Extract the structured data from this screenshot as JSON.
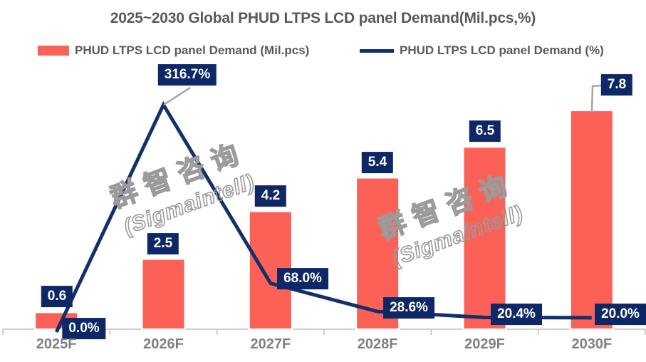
{
  "title": "2025~2030 Global PHUD LTPS LCD panel Demand(Mil.pcs,%)",
  "legend": {
    "bar_label": "PHUD LTPS LCD panel Demand (Mil.pcs)",
    "line_label": "PHUD LTPS LCD panel Demand (%)"
  },
  "watermark": {
    "line1": "群智咨询",
    "line2": "(Sigmaintell)"
  },
  "colors": {
    "bar": "#FB6157",
    "bar_stroke": "#FFFFFF",
    "line": "#13306B",
    "label_box": "#0E2766",
    "label_text": "#FFFFFF",
    "axis": "#BFBFBF",
    "heading_text": "#595959",
    "leader": "#A6A6A6",
    "watermark": "#9B9B9B"
  },
  "chart_data": {
    "type": "combo",
    "title": "2025~2030 Global PHUD LTPS LCD panel Demand(Mil.pcs,%)",
    "categories": [
      "2025F",
      "2026F",
      "2027F",
      "2028F",
      "2029F",
      "2030F"
    ],
    "series": [
      {
        "name": "PHUD LTPS LCD panel Demand (Mil.pcs)",
        "type": "bar",
        "values": [
          0.6,
          2.5,
          4.2,
          5.4,
          6.5,
          7.8
        ],
        "labels": [
          "0.6",
          "2.5",
          "4.2",
          "5.4",
          "6.5",
          "7.8"
        ]
      },
      {
        "name": "PHUD LTPS LCD panel Demand (%)",
        "type": "line",
        "values": [
          0.0,
          316.7,
          68.0,
          28.6,
          20.4,
          20.0
        ],
        "labels": [
          "0.0%",
          "316.7%",
          "68.0%",
          "28.6%",
          "20.4%",
          "20.0%"
        ]
      }
    ],
    "legend_position": "top",
    "gridlines": false,
    "value_axis_hidden": true,
    "xlabel": "",
    "ylabel": ""
  }
}
